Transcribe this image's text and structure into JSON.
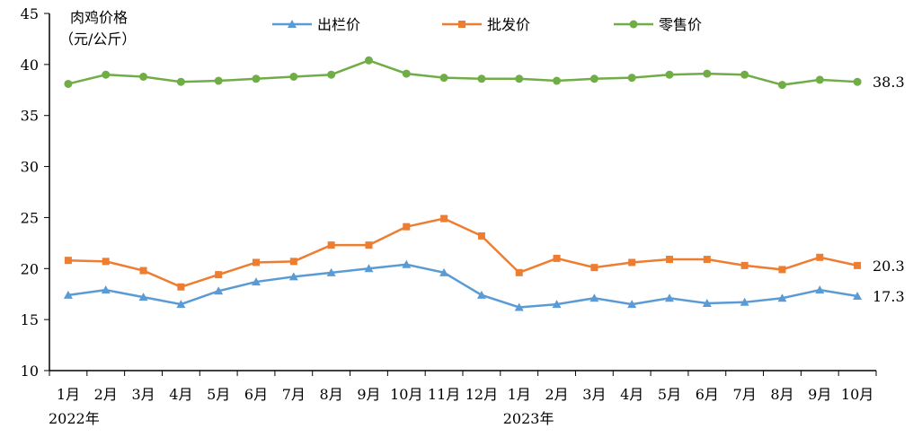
{
  "chart_data": {
    "type": "line",
    "ylabel_line1": "肉鸡价格",
    "ylabel_line2": "（元/公斤）",
    "ylim": [
      10,
      45
    ],
    "yticks": [
      "10",
      "15",
      "20",
      "25",
      "30",
      "35",
      "40",
      "45"
    ],
    "categories": [
      "1月",
      "2月",
      "3月",
      "4月",
      "5月",
      "6月",
      "7月",
      "8月",
      "9月",
      "10月",
      "11月",
      "12月",
      "1月",
      "2月",
      "3月",
      "4月",
      "5月",
      "6月",
      "7月",
      "8月",
      "9月",
      "10月"
    ],
    "year_labels": [
      "2022年",
      "2023年"
    ],
    "legend_position": "top",
    "series": [
      {
        "name": "出栏价",
        "color": "#5b9bd5",
        "marker": "triangle",
        "values": [
          17.4,
          17.9,
          17.2,
          16.5,
          17.8,
          18.7,
          19.2,
          19.6,
          20.0,
          20.4,
          19.6,
          17.4,
          16.2,
          16.5,
          17.1,
          16.5,
          17.1,
          16.6,
          16.7,
          17.1,
          17.9,
          17.3
        ],
        "end_label": "17.3"
      },
      {
        "name": "批发价",
        "color": "#ed7d31",
        "marker": "square",
        "values": [
          20.8,
          20.7,
          19.8,
          18.2,
          19.4,
          20.6,
          20.7,
          22.3,
          22.3,
          24.1,
          24.9,
          23.2,
          19.6,
          21.0,
          20.1,
          20.6,
          20.9,
          20.9,
          20.3,
          19.9,
          21.1,
          20.3
        ],
        "end_label": "20.3"
      },
      {
        "name": "零售价",
        "color": "#70ad47",
        "marker": "circle",
        "values": [
          38.1,
          39.0,
          38.8,
          38.3,
          38.4,
          38.6,
          38.8,
          39.0,
          40.4,
          39.1,
          38.7,
          38.6,
          38.6,
          38.4,
          38.6,
          38.7,
          39.0,
          39.1,
          39.0,
          38.0,
          38.5,
          38.3
        ],
        "end_label": "38.3"
      }
    ]
  }
}
